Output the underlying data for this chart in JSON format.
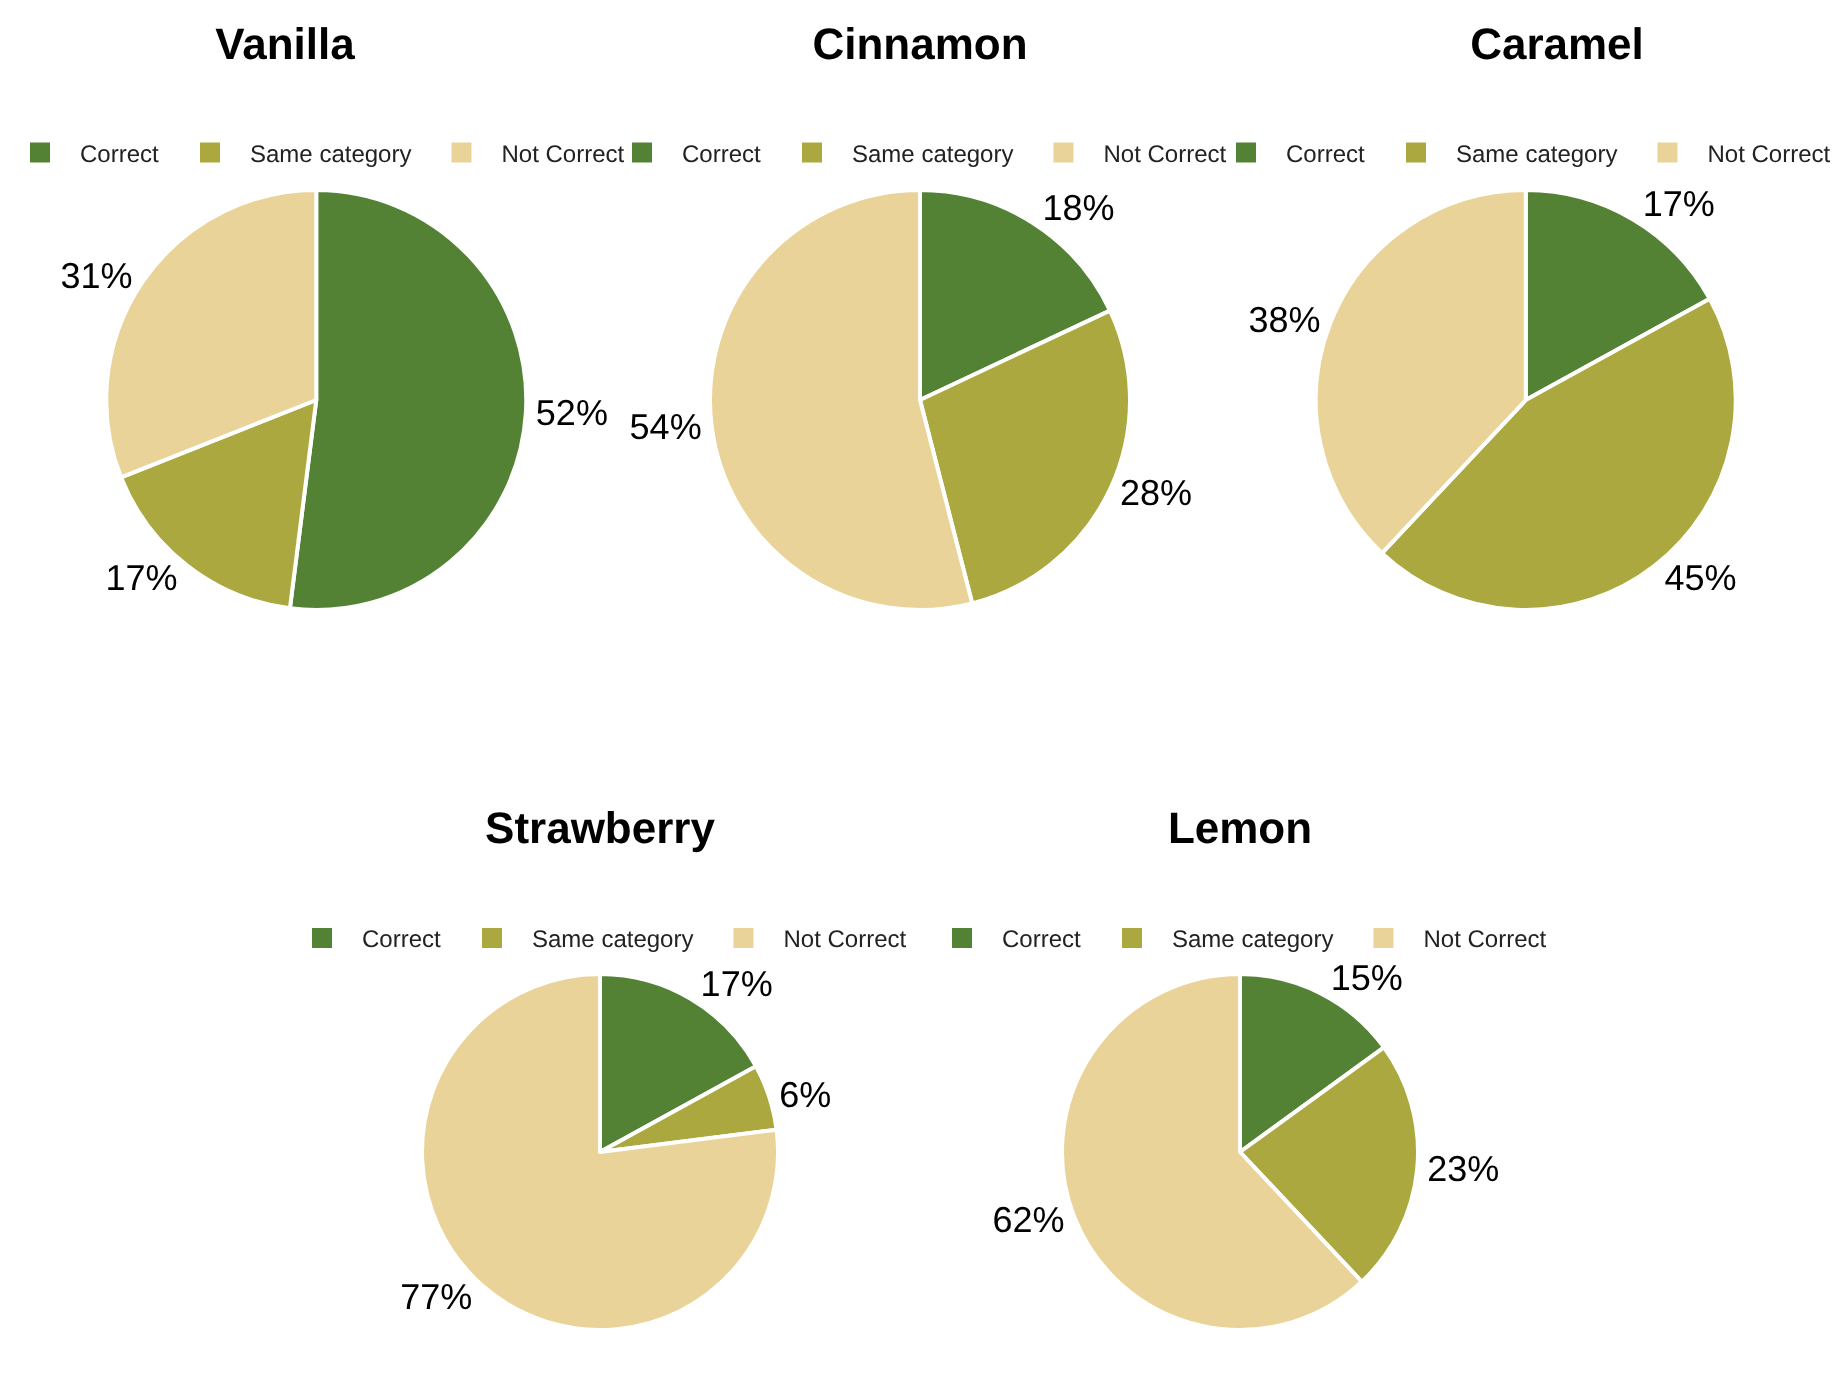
{
  "chart_data": [
    {
      "type": "pie",
      "title": "Vanilla",
      "categories": [
        "Correct",
        "Same category",
        "Not Correct"
      ],
      "values": [
        52,
        17,
        31
      ],
      "value_labels": [
        "52%",
        "17%",
        "31%"
      ],
      "colors": [
        "#548235",
        "#aaa83f",
        "#ead399"
      ],
      "legend": "top"
    },
    {
      "type": "pie",
      "title": "Cinnamon",
      "categories": [
        "Correct",
        "Same category",
        "Not Correct"
      ],
      "values": [
        18,
        28,
        54
      ],
      "value_labels": [
        "18%",
        "28%",
        "54%"
      ],
      "colors": [
        "#548235",
        "#aaa83f",
        "#ead399"
      ],
      "legend": "top"
    },
    {
      "type": "pie",
      "title": "Caramel",
      "categories": [
        "Correct",
        "Same category",
        "Not Correct"
      ],
      "values": [
        17,
        45,
        38
      ],
      "value_labels": [
        "17%",
        "45%",
        "38%"
      ],
      "colors": [
        "#548235",
        "#aaa83f",
        "#ead399"
      ],
      "legend": "top"
    },
    {
      "type": "pie",
      "title": "Strawberry",
      "categories": [
        "Correct",
        "Same category",
        "Not Correct"
      ],
      "values": [
        17,
        6,
        77
      ],
      "value_labels": [
        "17%",
        "6%",
        "77%"
      ],
      "colors": [
        "#548235",
        "#aaa83f",
        "#ead399"
      ],
      "legend": "top"
    },
    {
      "type": "pie",
      "title": "Lemon",
      "categories": [
        "Correct",
        "Same category",
        "Not Correct"
      ],
      "values": [
        15,
        23,
        62
      ],
      "value_labels": [
        "15%",
        "23%",
        "62%"
      ],
      "colors": [
        "#548235",
        "#aaa83f",
        "#ead399"
      ],
      "legend": "top"
    }
  ]
}
